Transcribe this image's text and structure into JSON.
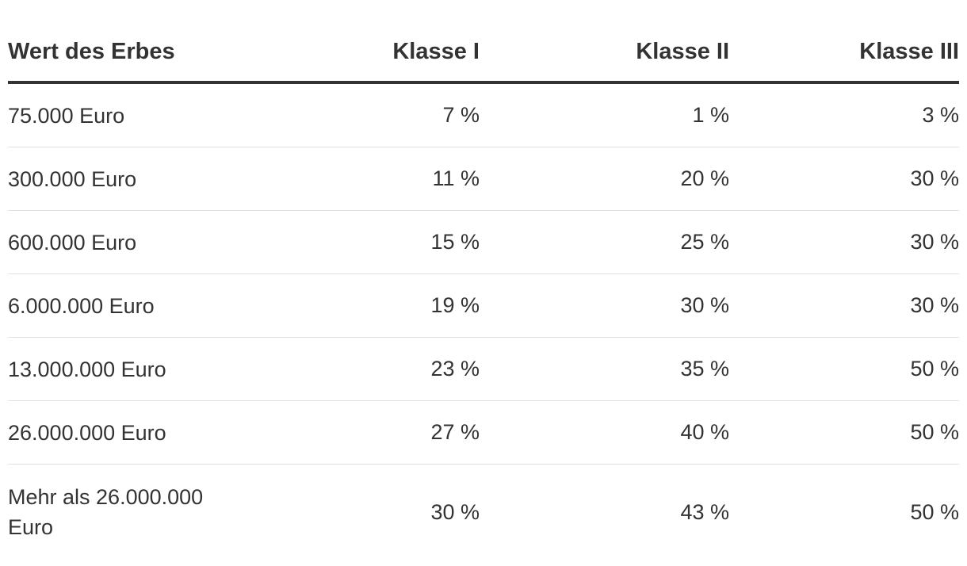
{
  "table": {
    "headers": [
      "Wert des Erbes",
      "Klasse I",
      "Klasse II",
      "Klasse III"
    ],
    "rows": [
      [
        "75.000 Euro",
        "7 %",
        "1 %",
        "3 %"
      ],
      [
        "300.000 Euro",
        "11 %",
        "20 %",
        "30 %"
      ],
      [
        "600.000 Euro",
        "15 %",
        "25 %",
        "30 %"
      ],
      [
        "6.000.000 Euro",
        "19 %",
        "30 %",
        "30 %"
      ],
      [
        "13.000.000 Euro",
        "23 %",
        "35 %",
        "50 %"
      ],
      [
        "26.000.000 Euro",
        "27 %",
        "40 %",
        "50 %"
      ],
      [
        "Mehr als 26.000.000 Euro",
        "30 %",
        "43 %",
        "50 %"
      ]
    ]
  }
}
